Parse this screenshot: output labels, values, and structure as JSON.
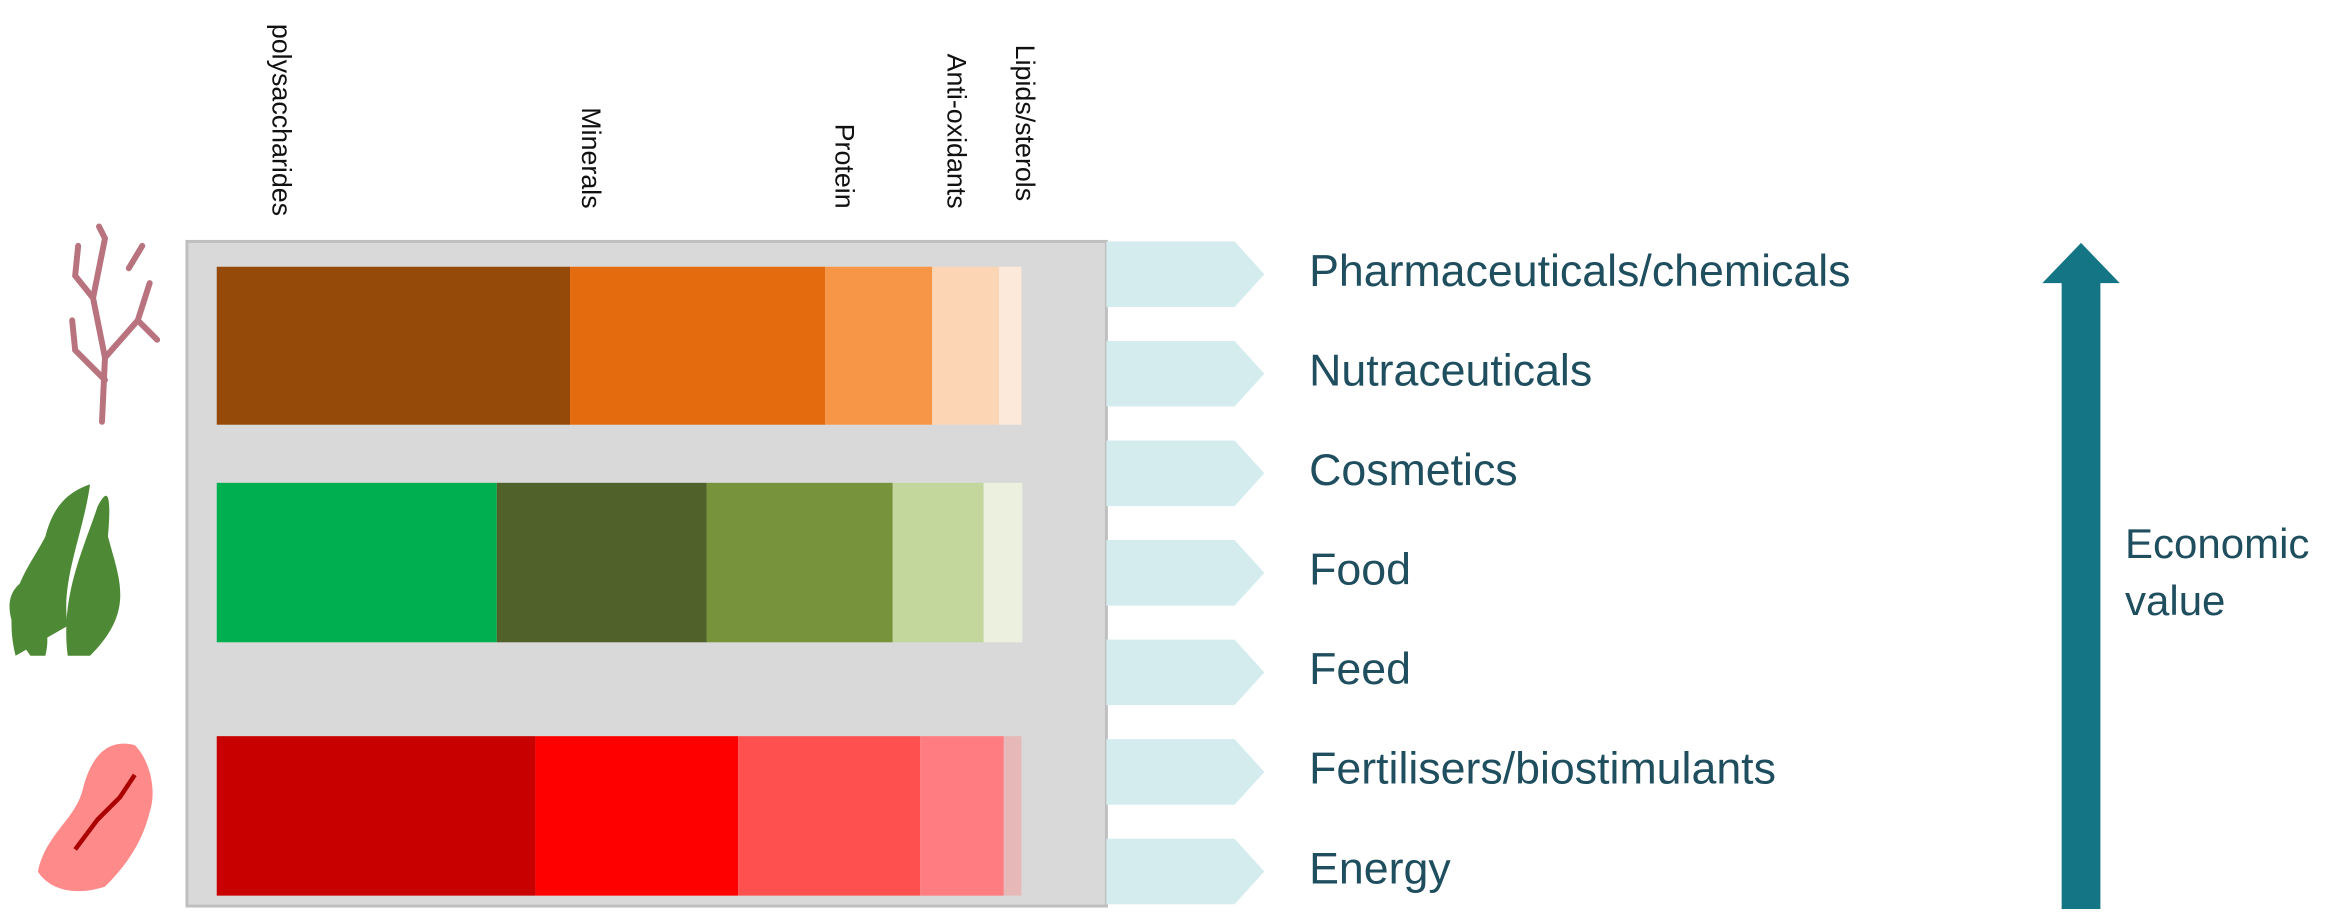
{
  "chart_data": {
    "type": "stacked-bar",
    "orientation": "horizontal",
    "categories": [
      null,
      null,
      null
    ],
    "xlim": [
      0,
      100
    ],
    "series": [
      {
        "name": "polysaccharides",
        "colors": [
          "#964a0a",
          "#00b050",
          "#c80000"
        ],
        "values": [
          43.9,
          34.8,
          39.6
        ]
      },
      {
        "name": "Minerals",
        "colors": [
          "#e46c0e",
          "#50612a",
          "#ff0000"
        ],
        "values": [
          31.7,
          26.1,
          25.2
        ]
      },
      {
        "name": "Protein",
        "colors": [
          "#f79646",
          "#77933c",
          "#ff5050"
        ],
        "values": [
          13.3,
          23.1,
          22.6
        ]
      },
      {
        "name": "Anti-oxidants",
        "colors": [
          "#fcd5b5",
          "#c3d69b",
          "#ff7c80"
        ],
        "values": [
          8.3,
          11.3,
          10.4
        ]
      },
      {
        "name": "Lipids/sterols",
        "colors": [
          "#fde9d9",
          "#ebf1de",
          "#e6b9b8"
        ],
        "values": [
          2.8,
          4.8,
          2.2
        ]
      }
    ],
    "applications": [
      "Pharmaceuticals/chemicals",
      "Nutraceuticals",
      "Cosmetics",
      "Food",
      "Feed",
      "Fertilisers/biostimulants",
      "Energy"
    ],
    "arrow_label": "Economic value"
  }
}
